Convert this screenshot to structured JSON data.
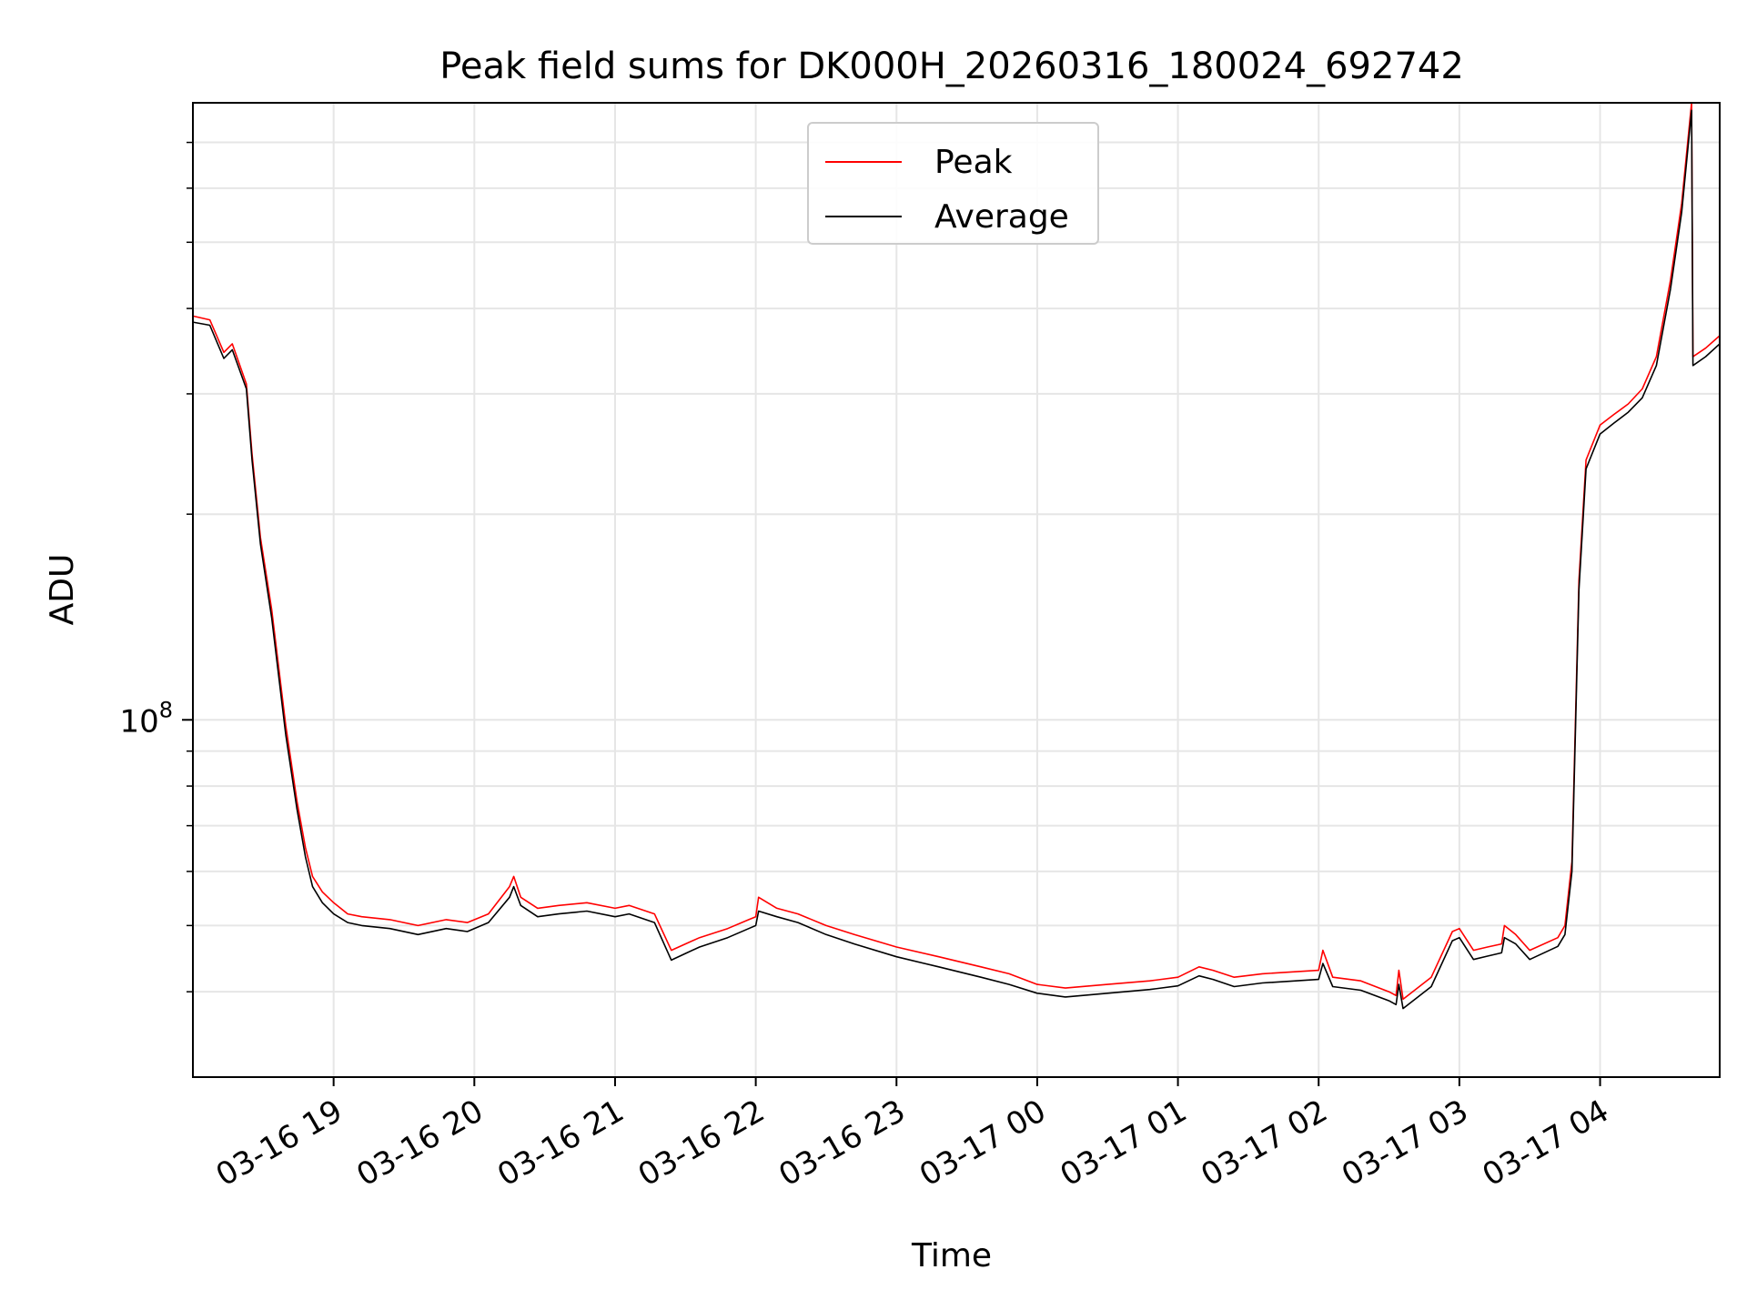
{
  "chart_data": {
    "type": "line",
    "title": "Peak field sums for DK000H_20260316_180024_692742",
    "xlabel": "Time",
    "ylabel": "ADU",
    "yscale": "log",
    "ylim": [
      30000000,
      800000000
    ],
    "y_tick_labels": [
      {
        "value": 100000000,
        "base": "10",
        "exp": "8"
      }
    ],
    "x_range_hours": [
      0.0,
      10.85
    ],
    "x_tick_hours": [
      1,
      2,
      3,
      4,
      5,
      6,
      7,
      8,
      9,
      10
    ],
    "x_tick_labels": [
      "03-16 19",
      "03-16 20",
      "03-16 21",
      "03-16 22",
      "03-16 23",
      "03-17 00",
      "03-17 01",
      "03-17 02",
      "03-17 03",
      "03-17 04"
    ],
    "x_axis_note": "x values are hours after 03-16 18:00",
    "grid": true,
    "legend_position": "upper center",
    "series": [
      {
        "name": "Peak",
        "color": "#ff0000",
        "x": [
          0.0,
          0.12,
          0.22,
          0.28,
          0.38,
          0.42,
          0.48,
          0.56,
          0.66,
          0.74,
          0.8,
          0.85,
          0.92,
          1.0,
          1.1,
          1.2,
          1.4,
          1.6,
          1.8,
          1.95,
          2.1,
          2.25,
          2.28,
          2.33,
          2.45,
          2.6,
          2.8,
          3.0,
          3.1,
          3.28,
          3.4,
          3.5,
          3.6,
          3.8,
          3.95,
          4.0,
          4.02,
          4.15,
          4.3,
          4.5,
          4.7,
          5.0,
          5.3,
          5.6,
          5.8,
          6.0,
          6.2,
          6.5,
          6.8,
          7.0,
          7.15,
          7.25,
          7.4,
          7.6,
          8.0,
          8.03,
          8.1,
          8.3,
          8.5,
          8.55,
          8.57,
          8.6,
          8.8,
          8.95,
          9.0,
          9.1,
          9.2,
          9.3,
          9.32,
          9.4,
          9.5,
          9.7,
          9.75,
          9.8,
          9.85,
          9.9,
          10.0,
          10.1,
          10.2,
          10.3,
          10.4,
          10.5,
          10.58,
          10.65,
          10.66,
          10.75,
          10.85
        ],
        "values": [
          390000000,
          385000000,
          345000000,
          355000000,
          310000000,
          245000000,
          185000000,
          145000000,
          98000000,
          76000000,
          65000000,
          59000000,
          56000000,
          54000000,
          52000000,
          51500000,
          51000000,
          50000000,
          51000000,
          50500000,
          52000000,
          57000000,
          59000000,
          55000000,
          53000000,
          53500000,
          54000000,
          53000000,
          53500000,
          52000000,
          46000000,
          47000000,
          48000000,
          49500000,
          51000000,
          51500000,
          55000000,
          53000000,
          52000000,
          50000000,
          48500000,
          46500000,
          45000000,
          43500000,
          42500000,
          41000000,
          40500000,
          41000000,
          41500000,
          42000000,
          43500000,
          43000000,
          42000000,
          42500000,
          43000000,
          46000000,
          42000000,
          41500000,
          40000000,
          39500000,
          43000000,
          39000000,
          42000000,
          49000000,
          49500000,
          46000000,
          46500000,
          47000000,
          50000000,
          48500000,
          46000000,
          48000000,
          50000000,
          62000000,
          160000000,
          240000000,
          270000000,
          280000000,
          290000000,
          305000000,
          340000000,
          440000000,
          570000000,
          800000000,
          340000000,
          350000000,
          365000000
        ]
      },
      {
        "name": "Average",
        "color": "#000000",
        "x": [
          0.0,
          0.12,
          0.22,
          0.28,
          0.38,
          0.42,
          0.48,
          0.56,
          0.66,
          0.74,
          0.8,
          0.85,
          0.92,
          1.0,
          1.1,
          1.2,
          1.4,
          1.6,
          1.8,
          1.95,
          2.1,
          2.25,
          2.28,
          2.33,
          2.45,
          2.6,
          2.8,
          3.0,
          3.1,
          3.28,
          3.4,
          3.5,
          3.6,
          3.8,
          3.95,
          4.0,
          4.02,
          4.15,
          4.3,
          4.5,
          4.7,
          5.0,
          5.3,
          5.6,
          5.8,
          6.0,
          6.2,
          6.5,
          6.8,
          7.0,
          7.15,
          7.25,
          7.4,
          7.6,
          8.0,
          8.03,
          8.1,
          8.3,
          8.5,
          8.55,
          8.57,
          8.6,
          8.8,
          8.95,
          9.0,
          9.1,
          9.2,
          9.3,
          9.32,
          9.4,
          9.5,
          9.7,
          9.75,
          9.8,
          9.85,
          9.9,
          10.0,
          10.1,
          10.2,
          10.3,
          10.4,
          10.5,
          10.58,
          10.65,
          10.66,
          10.75,
          10.85
        ],
        "values": [
          382000000,
          378000000,
          338000000,
          348000000,
          305000000,
          240000000,
          181000000,
          141000000,
          95000000,
          74000000,
          63000000,
          57000000,
          54000000,
          52000000,
          50500000,
          50000000,
          49500000,
          48500000,
          49500000,
          49000000,
          50500000,
          55000000,
          57000000,
          53500000,
          51500000,
          52000000,
          52500000,
          51500000,
          52000000,
          50500000,
          44500000,
          45500000,
          46500000,
          48000000,
          49500000,
          50000000,
          52500000,
          51500000,
          50500000,
          48500000,
          47000000,
          45000000,
          43500000,
          42000000,
          41000000,
          39800000,
          39300000,
          39800000,
          40300000,
          40800000,
          42200000,
          41700000,
          40700000,
          41200000,
          41700000,
          44000000,
          40700000,
          40200000,
          38800000,
          38300000,
          41000000,
          37800000,
          40700000,
          47500000,
          48000000,
          44600000,
          45100000,
          45600000,
          48000000,
          47000000,
          44600000,
          46600000,
          48500000,
          60000000,
          155000000,
          233000000,
          262000000,
          272000000,
          282000000,
          296000000,
          330000000,
          427000000,
          553000000,
          780000000,
          330000000,
          340000000,
          355000000
        ]
      }
    ]
  }
}
